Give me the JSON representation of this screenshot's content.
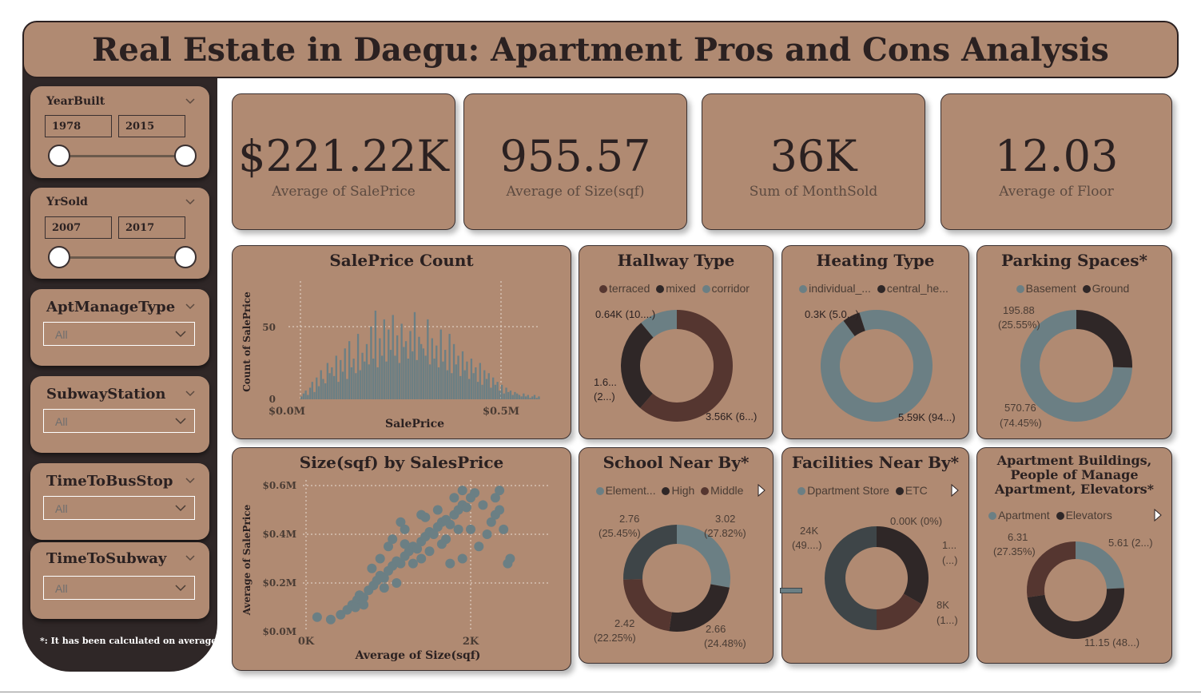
{
  "title": "Real Estate in Daegu: Apartment Pros and Cons Analysis",
  "filters": {
    "year_built": {
      "label": "YearBuilt",
      "from": "1978",
      "to": "2015"
    },
    "yr_sold": {
      "label": "YrSold",
      "from": "2007",
      "to": "2017"
    },
    "apt_manage_type": {
      "label": "AptManageType",
      "value": "All"
    },
    "subway_station": {
      "label": "SubwayStation",
      "value": "All"
    },
    "time_to_bus_stop": {
      "label": "TimeToBusStop",
      "value": "All"
    },
    "time_to_subway": {
      "label": "TimeToSubway",
      "value": "All"
    }
  },
  "footnote": "*: It has been calculated on average.",
  "kpis": [
    {
      "value": "$221.22K",
      "label": "Average of SalePrice"
    },
    {
      "value": "955.57",
      "label": "Average of Size(sqf)"
    },
    {
      "value": "36K",
      "label": "Sum of MonthSold"
    },
    {
      "value": "12.03",
      "label": "Average of Floor"
    }
  ],
  "colors": {
    "brown_bg": "#b08a72",
    "dark": "#2f2727",
    "teal": "#6b7f84",
    "gray_blue": "#7a8c92",
    "maroon": "#553630",
    "slate": "#3e4548"
  },
  "charts": {
    "histogram": {
      "title": "SalePrice Count",
      "xlabel": "SalePrice",
      "ylabel": "Count of SalePrice",
      "xticks": [
        "$0.0M",
        "$0.5M"
      ],
      "yticks": [
        "0",
        "50"
      ]
    },
    "scatter": {
      "title": "Size(sqf) by SalesPrice",
      "xlabel": "Average of Size(sqf)",
      "ylabel": "Average of SalePrice",
      "xticks": [
        "0K",
        "2K"
      ],
      "yticks": [
        "$0.0M",
        "$0.2M",
        "$0.4M",
        "$0.6M"
      ]
    },
    "hallway": {
      "title": "Hallway Type",
      "legend": [
        "terraced",
        "mixed",
        "corridor"
      ],
      "labels": {
        "corridor": "0.64K (10....)",
        "mixed_1": "1.6...",
        "mixed_2": "(2...)",
        "terraced": "3.56K (6...)"
      }
    },
    "heating": {
      "title": "Heating Type",
      "legend": [
        "individual_...",
        "central_he..."
      ],
      "labels": {
        "central": "0.3K (5.0...)",
        "individual": "5.59K (94...)"
      }
    },
    "parking": {
      "title": "Parking Spaces*",
      "legend": [
        "Basement",
        "Ground"
      ],
      "labels": {
        "ground_1": "195.88",
        "ground_2": "(25.55%)",
        "basement_1": "570.76",
        "basement_2": "(74.45%)"
      }
    },
    "school": {
      "title": "School Near By*",
      "legend": [
        "Element...",
        "High",
        "Middle"
      ],
      "labels": {
        "tl1": "2.76",
        "tl2": "(25.45%)",
        "tr1": "3.02",
        "tr2": "(27.82%)",
        "bl1": "2.42",
        "bl2": "(22.25%)",
        "br1": "2.66",
        "br2": "(24.48%)"
      }
    },
    "facilities": {
      "title": "Facilities Near By*",
      "legend": [
        "Dpartment Store",
        "ETC"
      ],
      "labels": {
        "top": "0.00K (0%)",
        "left1": "24K",
        "left2": "(49....)",
        "r1a": "1...",
        "r1b": "(...)",
        "r2a": "8K",
        "r2b": "(1...)"
      }
    },
    "buildings": {
      "title_line1": "Apartment Buildings,",
      "title_line2": "People of Manage",
      "title_line3": "Apartment, Elevators*",
      "legend": [
        "Apartment",
        "Elevators"
      ],
      "labels": {
        "l1": "6.31",
        "l2": "(27.35%)",
        "r": "5.61 (2...)",
        "b": "11.15 (48...)"
      }
    }
  },
  "chart_data": [
    {
      "type": "bar",
      "title": "SalePrice Count",
      "xlabel": "SalePrice",
      "ylabel": "Count of SalePrice",
      "xlim": [
        0,
        0.6
      ],
      "ylim": [
        0,
        70
      ],
      "x_unit": "$M",
      "values": [
        2,
        4,
        6,
        3,
        8,
        12,
        5,
        15,
        9,
        20,
        14,
        11,
        25,
        18,
        22,
        16,
        30,
        12,
        27,
        19,
        35,
        14,
        40,
        22,
        28,
        18,
        45,
        20,
        32,
        26,
        38,
        24,
        50,
        28,
        61,
        22,
        42,
        30,
        55,
        26,
        48,
        34,
        58,
        30,
        44,
        25,
        52,
        36,
        40,
        28,
        47,
        33,
        60,
        27,
        43,
        38,
        35,
        30,
        55,
        24,
        42,
        28,
        37,
        22,
        48,
        26,
        34,
        20,
        45,
        18,
        38,
        24,
        30,
        16,
        33,
        20,
        26,
        14,
        28,
        18,
        22,
        12,
        25,
        10,
        20,
        14,
        18,
        8,
        15,
        10,
        12,
        6,
        10,
        4,
        8,
        5,
        6,
        3,
        5,
        4,
        3,
        2,
        4,
        2,
        3,
        1,
        2,
        3,
        1,
        2
      ]
    },
    {
      "type": "scatter",
      "title": "Size(sqf) by SalesPrice",
      "xlabel": "Average of Size(sqf)",
      "ylabel": "Average of SalePrice",
      "xlim": [
        0,
        2800
      ],
      "ylim": [
        0,
        0.62
      ],
      "points": [
        [
          135,
          0.06
        ],
        [
          300,
          0.05
        ],
        [
          420,
          0.07
        ],
        [
          500,
          0.09
        ],
        [
          560,
          0.11
        ],
        [
          620,
          0.13
        ],
        [
          650,
          0.15
        ],
        [
          700,
          0.14
        ],
        [
          760,
          0.17
        ],
        [
          820,
          0.19
        ],
        [
          860,
          0.21
        ],
        [
          900,
          0.23
        ],
        [
          950,
          0.22
        ],
        [
          1000,
          0.25
        ],
        [
          1050,
          0.27
        ],
        [
          1100,
          0.29
        ],
        [
          1150,
          0.28
        ],
        [
          1200,
          0.31
        ],
        [
          1250,
          0.33
        ],
        [
          1300,
          0.35
        ],
        [
          1350,
          0.34
        ],
        [
          1400,
          0.37
        ],
        [
          1450,
          0.39
        ],
        [
          1500,
          0.41
        ],
        [
          1550,
          0.4
        ],
        [
          1600,
          0.43
        ],
        [
          1650,
          0.45
        ],
        [
          1700,
          0.46
        ],
        [
          1750,
          0.44
        ],
        [
          1800,
          0.48
        ],
        [
          1850,
          0.5
        ],
        [
          1900,
          0.52
        ],
        [
          1950,
          0.51
        ],
        [
          2000,
          0.55
        ],
        [
          2050,
          0.57
        ],
        [
          1900,
          0.58
        ],
        [
          1800,
          0.55
        ],
        [
          1600,
          0.5
        ],
        [
          1400,
          0.48
        ],
        [
          1200,
          0.42
        ],
        [
          1000,
          0.35
        ],
        [
          900,
          0.3
        ],
        [
          800,
          0.26
        ],
        [
          1300,
          0.28
        ],
        [
          1500,
          0.33
        ],
        [
          1700,
          0.38
        ],
        [
          2000,
          0.42
        ],
        [
          2200,
          0.4
        ],
        [
          2250,
          0.45
        ],
        [
          2300,
          0.48
        ],
        [
          2350,
          0.5
        ],
        [
          2400,
          0.42
        ],
        [
          2480,
          0.3
        ],
        [
          2100,
          0.35
        ],
        [
          1900,
          0.3
        ],
        [
          1750,
          0.28
        ],
        [
          1100,
          0.2
        ],
        [
          950,
          0.18
        ],
        [
          700,
          0.11
        ],
        [
          600,
          0.1
        ],
        [
          1200,
          0.36
        ],
        [
          1400,
          0.3
        ],
        [
          1650,
          0.36
        ],
        [
          1850,
          0.42
        ],
        [
          2150,
          0.52
        ],
        [
          2300,
          0.55
        ],
        [
          2350,
          0.58
        ],
        [
          1050,
          0.38
        ],
        [
          1150,
          0.45
        ],
        [
          1450,
          0.47
        ],
        [
          2450,
          0.28
        ]
      ]
    },
    {
      "type": "pie",
      "title": "Hallway Type",
      "series": [
        {
          "name": "terraced",
          "values": [
            3.56
          ]
        },
        {
          "name": "mixed",
          "values": [
            1.6
          ]
        },
        {
          "name": "corridor",
          "values": [
            0.64
          ]
        }
      ],
      "unit": "K"
    },
    {
      "type": "pie",
      "title": "Heating Type",
      "series": [
        {
          "name": "individual_...",
          "values": [
            5.59
          ]
        },
        {
          "name": "central_he...",
          "values": [
            0.3
          ]
        }
      ],
      "unit": "K"
    },
    {
      "type": "pie",
      "title": "Parking Spaces*",
      "series": [
        {
          "name": "Basement",
          "values": [
            570.76
          ]
        },
        {
          "name": "Ground",
          "values": [
            195.88
          ]
        }
      ]
    },
    {
      "type": "pie",
      "title": "School Near By*",
      "values": [
        3.02,
        2.66,
        2.42,
        2.76
      ]
    },
    {
      "type": "pie",
      "title": "Facilities Near By*",
      "values": [
        0.0,
        16,
        8,
        24
      ]
    },
    {
      "type": "pie",
      "title": "Apartment Buildings, People of Manage Apartment, Elevators*",
      "values": [
        5.61,
        11.15,
        6.31
      ]
    }
  ]
}
